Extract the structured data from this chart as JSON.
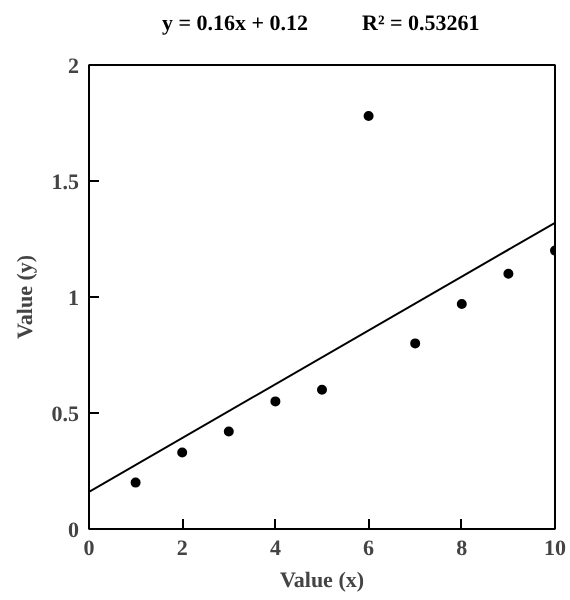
{
  "chart_data": {
    "type": "scatter",
    "xlabel": "Value (x)",
    "ylabel": "Value (y)",
    "annotations": [
      "y = 0.16x + 0.12",
      "R² = 0.53261"
    ],
    "xlim": [
      0,
      10
    ],
    "ylim": [
      0,
      2
    ],
    "xticks": [
      0,
      2,
      4,
      6,
      8,
      10
    ],
    "yticks": [
      0,
      0.5,
      1,
      1.5,
      2
    ],
    "grid": false,
    "series": [
      {
        "type": "scatter",
        "marker": "circle",
        "color": "#000000",
        "x": [
          1,
          2,
          3,
          4,
          5,
          6,
          7,
          8,
          9,
          10
        ],
        "values": [
          0.2,
          0.33,
          0.42,
          0.55,
          0.6,
          1.78,
          0.8,
          0.97,
          1.1,
          1.2
        ]
      },
      {
        "type": "line",
        "color": "#000000",
        "line_style": "solid",
        "x": [
          0,
          10
        ],
        "values": [
          0.16,
          1.32
        ]
      }
    ]
  }
}
